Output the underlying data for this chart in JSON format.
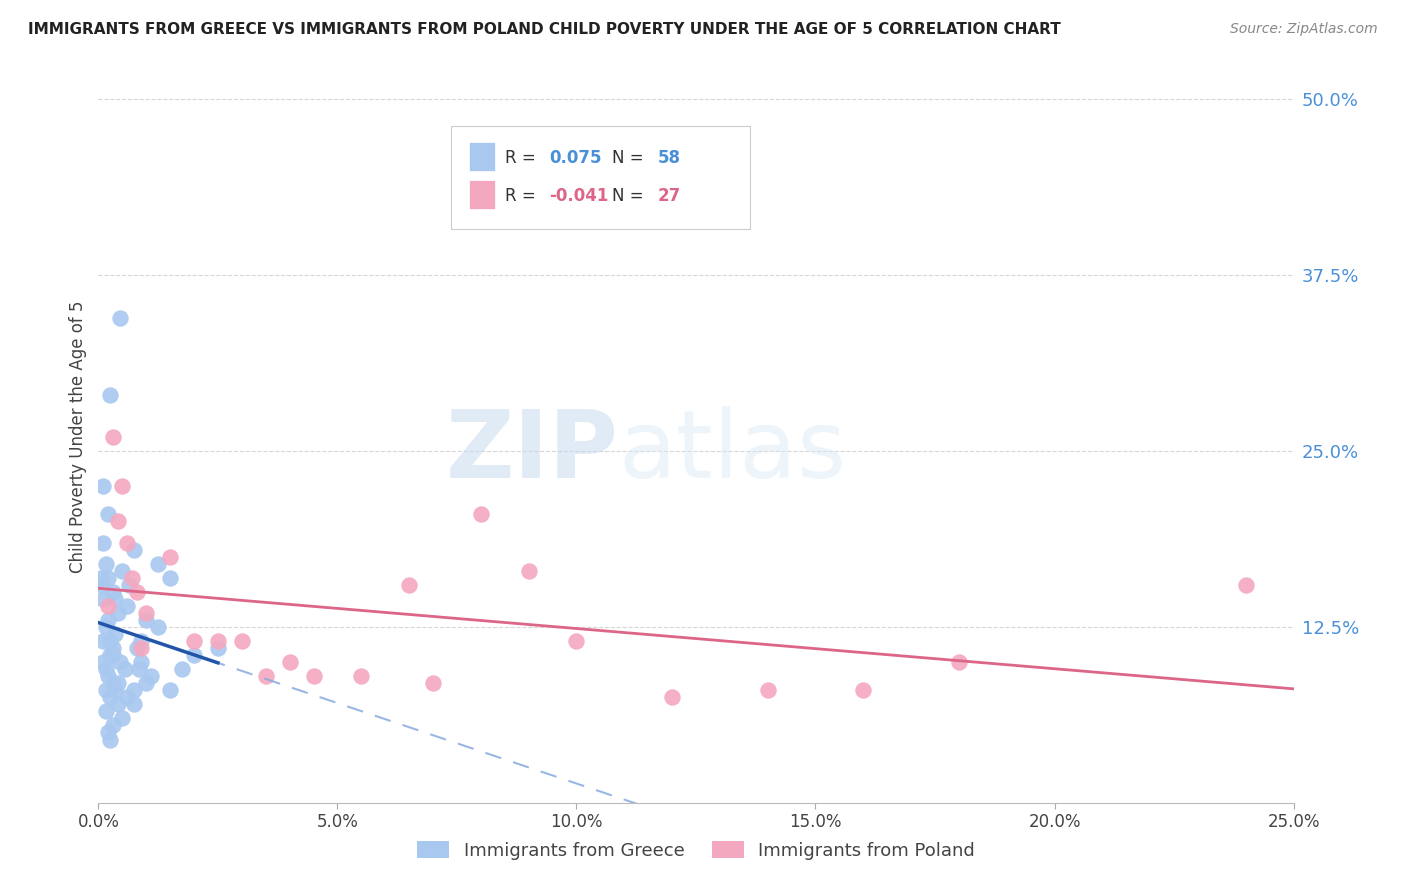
{
  "title": "IMMIGRANTS FROM GREECE VS IMMIGRANTS FROM POLAND CHILD POVERTY UNDER THE AGE OF 5 CORRELATION CHART",
  "source": "Source: ZipAtlas.com",
  "ylabel": "Child Poverty Under the Age of 5",
  "x_tick_vals": [
    0.0,
    5.0,
    10.0,
    15.0,
    20.0,
    25.0
  ],
  "y_tick_labels": [
    "12.5%",
    "25.0%",
    "37.5%",
    "50.0%"
  ],
  "y_tick_vals": [
    12.5,
    25.0,
    37.5,
    50.0
  ],
  "xlim": [
    0.0,
    25.0
  ],
  "ylim": [
    0.0,
    52.0
  ],
  "legend_greece": "Immigrants from Greece",
  "legend_poland": "Immigrants from Poland",
  "R_greece": "0.075",
  "N_greece": "58",
  "R_poland": "-0.041",
  "N_poland": "27",
  "greece_color": "#A8C8F0",
  "poland_color": "#F4A8C0",
  "greece_trend_solid_color": "#2255AA",
  "greece_trend_dash_color": "#88AADD",
  "poland_trend_color": "#DD6688",
  "greece_scatter": [
    [
      0.15,
      17.0
    ],
    [
      0.25,
      29.0
    ],
    [
      0.1,
      14.5
    ],
    [
      0.2,
      16.0
    ],
    [
      0.08,
      15.5
    ],
    [
      0.3,
      15.0
    ],
    [
      0.4,
      13.5
    ],
    [
      0.35,
      12.0
    ],
    [
      0.6,
      14.0
    ],
    [
      0.75,
      18.0
    ],
    [
      0.15,
      12.5
    ],
    [
      0.1,
      11.5
    ],
    [
      0.25,
      10.5
    ],
    [
      0.2,
      13.0
    ],
    [
      0.3,
      11.0
    ],
    [
      0.45,
      10.0
    ],
    [
      0.55,
      9.5
    ],
    [
      0.5,
      16.5
    ],
    [
      0.4,
      8.5
    ],
    [
      0.35,
      14.5
    ],
    [
      0.65,
      15.5
    ],
    [
      0.8,
      11.0
    ],
    [
      1.0,
      13.0
    ],
    [
      0.9,
      10.0
    ],
    [
      1.25,
      17.0
    ],
    [
      0.15,
      8.0
    ],
    [
      0.25,
      7.5
    ],
    [
      1.5,
      16.0
    ],
    [
      1.1,
      9.0
    ],
    [
      0.75,
      8.0
    ],
    [
      0.1,
      18.5
    ],
    [
      0.2,
      20.5
    ],
    [
      0.45,
      34.5
    ],
    [
      0.05,
      16.0
    ],
    [
      0.85,
      9.5
    ],
    [
      0.3,
      10.5
    ],
    [
      0.15,
      9.5
    ],
    [
      0.25,
      11.5
    ],
    [
      0.1,
      10.0
    ],
    [
      0.4,
      7.0
    ],
    [
      0.5,
      6.0
    ],
    [
      0.6,
      7.5
    ],
    [
      0.2,
      9.0
    ],
    [
      0.35,
      8.0
    ],
    [
      0.15,
      6.5
    ],
    [
      0.3,
      5.5
    ],
    [
      0.25,
      4.5
    ],
    [
      1.0,
      8.5
    ],
    [
      0.75,
      7.0
    ],
    [
      0.9,
      11.5
    ],
    [
      1.75,
      9.5
    ],
    [
      1.5,
      8.0
    ],
    [
      2.0,
      10.5
    ],
    [
      1.25,
      12.5
    ],
    [
      2.5,
      11.0
    ],
    [
      0.1,
      22.5
    ],
    [
      0.2,
      5.0
    ],
    [
      0.3,
      8.5
    ]
  ],
  "poland_scatter": [
    [
      0.3,
      26.0
    ],
    [
      0.5,
      22.5
    ],
    [
      0.4,
      20.0
    ],
    [
      0.6,
      18.5
    ],
    [
      0.7,
      16.0
    ],
    [
      0.8,
      15.0
    ],
    [
      1.0,
      13.5
    ],
    [
      0.2,
      14.0
    ],
    [
      0.9,
      11.0
    ],
    [
      1.5,
      17.5
    ],
    [
      2.0,
      11.5
    ],
    [
      2.5,
      11.5
    ],
    [
      3.0,
      11.5
    ],
    [
      3.5,
      9.0
    ],
    [
      4.0,
      10.0
    ],
    [
      5.5,
      9.0
    ],
    [
      6.5,
      15.5
    ],
    [
      8.0,
      20.5
    ],
    [
      9.0,
      16.5
    ],
    [
      10.0,
      11.5
    ],
    [
      12.0,
      7.5
    ],
    [
      14.0,
      8.0
    ],
    [
      16.0,
      8.0
    ],
    [
      18.0,
      10.0
    ],
    [
      24.0,
      15.5
    ],
    [
      4.5,
      9.0
    ],
    [
      7.0,
      8.5
    ]
  ],
  "watermark_zip": "ZIP",
  "watermark_atlas": "atlas",
  "background_color": "#FFFFFF",
  "grid_color": "#CCCCCC"
}
